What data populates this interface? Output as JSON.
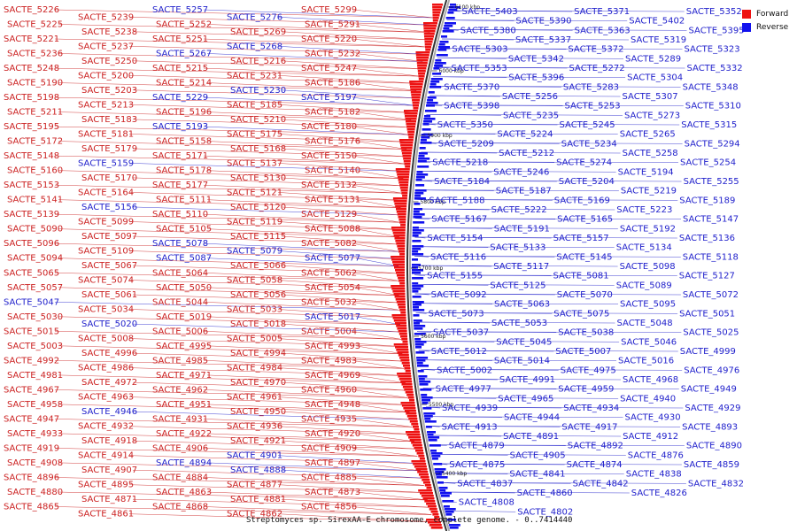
{
  "title": "Streptomyces sp. SirexAA-E chromosome, complete genome. - 0..7414440",
  "colors": {
    "forward": "#ee1111",
    "reverse": "#1111ee",
    "forward_text": "#cc2222",
    "reverse_text": "#2222cc"
  },
  "legend": [
    {
      "label": "Forward",
      "color": "#ee1111"
    },
    {
      "label": "Reverse",
      "color": "#1111ee"
    }
  ],
  "position_labels": [
    "6100 kbp",
    "6000 kbp",
    "5900 kbp",
    "5800 kbp",
    "5700 kbp",
    "5600 kbp",
    "5500 kbp",
    "5400 kbp"
  ],
  "left_labels": [
    [
      "SACTE_5226",
      "f"
    ],
    [
      "SACTE_5239",
      "f"
    ],
    [
      "SACTE_5257",
      "r"
    ],
    [
      "SACTE_5276",
      "r"
    ],
    [
      "SACTE_5299",
      "f"
    ],
    [
      "SACTE_5225",
      "f"
    ],
    [
      "SACTE_5238",
      "f"
    ],
    [
      "SACTE_5252",
      "f"
    ],
    [
      "SACTE_5269",
      "f"
    ],
    [
      "SACTE_5291",
      "f"
    ],
    [
      "SACTE_5221",
      "f"
    ],
    [
      "SACTE_5237",
      "f"
    ],
    [
      "SACTE_5251",
      "f"
    ],
    [
      "SACTE_5268",
      "r"
    ],
    [
      "SACTE_5220",
      "f"
    ],
    [
      "SACTE_5236",
      "f"
    ],
    [
      "SACTE_5250",
      "f"
    ],
    [
      "SACTE_5267",
      "r"
    ],
    [
      "SACTE_5216",
      "f"
    ],
    [
      "SACTE_5232",
      "f"
    ],
    [
      "SACTE_5248",
      "f"
    ],
    [
      "SACTE_5200",
      "f"
    ],
    [
      "SACTE_5215",
      "f"
    ],
    [
      "SACTE_5231",
      "f"
    ],
    [
      "SACTE_5247",
      "f"
    ],
    [
      "SACTE_5190",
      "f"
    ],
    [
      "SACTE_5203",
      "f"
    ],
    [
      "SACTE_5214",
      "f"
    ],
    [
      "SACTE_5230",
      "r"
    ],
    [
      "SACTE_5186",
      "f"
    ],
    [
      "SACTE_5198",
      "f"
    ],
    [
      "SACTE_5213",
      "f"
    ],
    [
      "SACTE_5229",
      "r"
    ],
    [
      "SACTE_5185",
      "f"
    ],
    [
      "SACTE_5197",
      "r"
    ],
    [
      "SACTE_5211",
      "f"
    ],
    [
      "SACTE_5183",
      "f"
    ],
    [
      "SACTE_5196",
      "f"
    ],
    [
      "SACTE_5210",
      "f"
    ],
    [
      "SACTE_5182",
      "f"
    ],
    [
      "SACTE_5195",
      "f"
    ],
    [
      "SACTE_5181",
      "f"
    ],
    [
      "SACTE_5193",
      "r"
    ],
    [
      "SACTE_5175",
      "f"
    ],
    [
      "SACTE_5180",
      "f"
    ],
    [
      "SACTE_5172",
      "f"
    ],
    [
      "SACTE_5179",
      "f"
    ],
    [
      "SACTE_5158",
      "f"
    ],
    [
      "SACTE_5168",
      "f"
    ],
    [
      "SACTE_5176",
      "f"
    ],
    [
      "SACTE_5148",
      "f"
    ],
    [
      "SACTE_5159",
      "r"
    ],
    [
      "SACTE_5171",
      "f"
    ],
    [
      "SACTE_5137",
      "f"
    ],
    [
      "SACTE_5150",
      "f"
    ],
    [
      "SACTE_5160",
      "f"
    ],
    [
      "SACTE_5170",
      "f"
    ],
    [
      "SACTE_5178",
      "f"
    ],
    [
      "SACTE_5130",
      "f"
    ],
    [
      "SACTE_5140",
      "f"
    ],
    [
      "SACTE_5153",
      "f"
    ],
    [
      "SACTE_5164",
      "f"
    ],
    [
      "SACTE_5177",
      "f"
    ],
    [
      "SACTE_5121",
      "f"
    ],
    [
      "SACTE_5132",
      "f"
    ],
    [
      "SACTE_5141",
      "f"
    ],
    [
      "SACTE_5156",
      "r"
    ],
    [
      "SACTE_5111",
      "f"
    ],
    [
      "SACTE_5120",
      "f"
    ],
    [
      "SACTE_5131",
      "f"
    ],
    [
      "SACTE_5139",
      "f"
    ],
    [
      "SACTE_5099",
      "f"
    ],
    [
      "SACTE_5110",
      "f"
    ],
    [
      "SACTE_5119",
      "f"
    ],
    [
      "SACTE_5129",
      "f"
    ],
    [
      "SACTE_5090",
      "f"
    ],
    [
      "SACTE_5097",
      "f"
    ],
    [
      "SACTE_5105",
      "f"
    ],
    [
      "SACTE_5115",
      "f"
    ],
    [
      "SACTE_5088",
      "f"
    ],
    [
      "SACTE_5096",
      "f"
    ],
    [
      "SACTE_5109",
      "f"
    ],
    [
      "SACTE_5078",
      "r"
    ],
    [
      "SACTE_5079",
      "r"
    ],
    [
      "SACTE_5082",
      "f"
    ],
    [
      "SACTE_5094",
      "f"
    ],
    [
      "SACTE_5067",
      "f"
    ],
    [
      "SACTE_5087",
      "r"
    ],
    [
      "SACTE_5066",
      "f"
    ],
    [
      "SACTE_5077",
      "r"
    ],
    [
      "SACTE_5065",
      "f"
    ],
    [
      "SACTE_5074",
      "f"
    ],
    [
      "SACTE_5064",
      "f"
    ],
    [
      "SACTE_5058",
      "f"
    ],
    [
      "SACTE_5062",
      "f"
    ],
    [
      "SACTE_5057",
      "f"
    ],
    [
      "SACTE_5061",
      "f"
    ],
    [
      "SACTE_5050",
      "f"
    ],
    [
      "SACTE_5056",
      "f"
    ],
    [
      "SACTE_5054",
      "f"
    ],
    [
      "SACTE_5047",
      "r"
    ],
    [
      "SACTE_5034",
      "f"
    ],
    [
      "SACTE_5044",
      "f"
    ],
    [
      "SACTE_5033",
      "f"
    ],
    [
      "SACTE_5032",
      "f"
    ],
    [
      "SACTE_5030",
      "f"
    ],
    [
      "SACTE_5020",
      "r"
    ],
    [
      "SACTE_5019",
      "f"
    ],
    [
      "SACTE_5018",
      "f"
    ],
    [
      "SACTE_5017",
      "r"
    ],
    [
      "SACTE_5015",
      "f"
    ],
    [
      "SACTE_5008",
      "f"
    ],
    [
      "SACTE_5006",
      "f"
    ],
    [
      "SACTE_5005",
      "f"
    ],
    [
      "SACTE_5004",
      "f"
    ],
    [
      "SACTE_5003",
      "f"
    ],
    [
      "SACTE_4996",
      "f"
    ],
    [
      "SACTE_4995",
      "f"
    ],
    [
      "SACTE_4994",
      "f"
    ],
    [
      "SACTE_4993",
      "f"
    ],
    [
      "SACTE_4992",
      "f"
    ],
    [
      "SACTE_4986",
      "f"
    ],
    [
      "SACTE_4985",
      "f"
    ],
    [
      "SACTE_4984",
      "f"
    ],
    [
      "SACTE_4983",
      "f"
    ],
    [
      "SACTE_4981",
      "f"
    ],
    [
      "SACTE_4972",
      "f"
    ],
    [
      "SACTE_4971",
      "f"
    ],
    [
      "SACTE_4970",
      "f"
    ],
    [
      "SACTE_4969",
      "f"
    ],
    [
      "SACTE_4967",
      "f"
    ],
    [
      "SACTE_4963",
      "f"
    ],
    [
      "SACTE_4962",
      "f"
    ],
    [
      "SACTE_4961",
      "f"
    ],
    [
      "SACTE_4960",
      "f"
    ],
    [
      "SACTE_4958",
      "f"
    ],
    [
      "SACTE_4946",
      "r"
    ],
    [
      "SACTE_4951",
      "f"
    ],
    [
      "SACTE_4950",
      "f"
    ],
    [
      "SACTE_4948",
      "f"
    ],
    [
      "SACTE_4947",
      "f"
    ],
    [
      "SACTE_4932",
      "f"
    ],
    [
      "SACTE_4931",
      "f"
    ],
    [
      "SACTE_4936",
      "f"
    ],
    [
      "SACTE_4935",
      "f"
    ],
    [
      "SACTE_4933",
      "f"
    ],
    [
      "SACTE_4918",
      "f"
    ],
    [
      "SACTE_4922",
      "f"
    ],
    [
      "SACTE_4921",
      "f"
    ],
    [
      "SACTE_4920",
      "f"
    ],
    [
      "SACTE_4919",
      "f"
    ],
    [
      "SACTE_4914",
      "f"
    ],
    [
      "SACTE_4906",
      "f"
    ],
    [
      "SACTE_4901",
      "r"
    ],
    [
      "SACTE_4909",
      "f"
    ],
    [
      "SACTE_4908",
      "f"
    ],
    [
      "SACTE_4907",
      "f"
    ],
    [
      "SACTE_4894",
      "r"
    ],
    [
      "SACTE_4888",
      "r"
    ],
    [
      "SACTE_4897",
      "f"
    ],
    [
      "SACTE_4896",
      "f"
    ],
    [
      "SACTE_4895",
      "f"
    ],
    [
      "SACTE_4884",
      "f"
    ],
    [
      "SACTE_4877",
      "f"
    ],
    [
      "SACTE_4885",
      "f"
    ],
    [
      "SACTE_4880",
      "f"
    ],
    [
      "SACTE_4871",
      "f"
    ],
    [
      "SACTE_4863",
      "f"
    ],
    [
      "SACTE_4881",
      "f"
    ],
    [
      "SACTE_4873",
      "f"
    ],
    [
      "SACTE_4865",
      "f"
    ],
    [
      "SACTE_4861",
      "f"
    ],
    [
      "SACTE_4868",
      "f"
    ],
    [
      "SACTE_4862",
      "f"
    ],
    [
      "SACTE_4856",
      "f"
    ]
  ],
  "right_labels": [
    [
      "SACTE_5403",
      "r"
    ],
    [
      "SACTE_5390",
      "r"
    ],
    [
      "SACTE_5371",
      "r"
    ],
    [
      "SACTE_5402",
      "r"
    ],
    [
      "SACTE_5352",
      "r"
    ],
    [
      "SACTE_5380",
      "r"
    ],
    [
      "SACTE_5337",
      "r"
    ],
    [
      "SACTE_5363",
      "r"
    ],
    [
      "SACTE_5319",
      "r"
    ],
    [
      "SACTE_5395",
      "r"
    ],
    [
      "SACTE_5303",
      "r"
    ],
    [
      "SACTE_5342",
      "r"
    ],
    [
      "SACTE_5372",
      "r"
    ],
    [
      "SACTE_5289",
      "r"
    ],
    [
      "SACTE_5323",
      "r"
    ],
    [
      "SACTE_5353",
      "r"
    ],
    [
      "SACTE_5396",
      "r"
    ],
    [
      "SACTE_5272",
      "r"
    ],
    [
      "SACTE_5304",
      "r"
    ],
    [
      "SACTE_5332",
      "r"
    ],
    [
      "SACTE_5370",
      "r"
    ],
    [
      "SACTE_5256",
      "r"
    ],
    [
      "SACTE_5283",
      "r"
    ],
    [
      "SACTE_5307",
      "r"
    ],
    [
      "SACTE_5348",
      "r"
    ],
    [
      "SACTE_5398",
      "r"
    ],
    [
      "SACTE_5235",
      "r"
    ],
    [
      "SACTE_5253",
      "r"
    ],
    [
      "SACTE_5273",
      "r"
    ],
    [
      "SACTE_5310",
      "r"
    ],
    [
      "SACTE_5350",
      "r"
    ],
    [
      "SACTE_5224",
      "r"
    ],
    [
      "SACTE_5245",
      "r"
    ],
    [
      "SACTE_5265",
      "r"
    ],
    [
      "SACTE_5315",
      "r"
    ],
    [
      "SACTE_5209",
      "r"
    ],
    [
      "SACTE_5212",
      "r"
    ],
    [
      "SACTE_5234",
      "r"
    ],
    [
      "SACTE_5258",
      "r"
    ],
    [
      "SACTE_5294",
      "r"
    ],
    [
      "SACTE_5218",
      "r"
    ],
    [
      "SACTE_5246",
      "r"
    ],
    [
      "SACTE_5274",
      "r"
    ],
    [
      "SACTE_5194",
      "r"
    ],
    [
      "SACTE_5254",
      "r"
    ],
    [
      "SACTE_5184",
      "r"
    ],
    [
      "SACTE_5187",
      "r"
    ],
    [
      "SACTE_5204",
      "r"
    ],
    [
      "SACTE_5219",
      "r"
    ],
    [
      "SACTE_5255",
      "r"
    ],
    [
      "SACTE_5188",
      "r"
    ],
    [
      "SACTE_5222",
      "r"
    ],
    [
      "SACTE_5169",
      "r"
    ],
    [
      "SACTE_5223",
      "r"
    ],
    [
      "SACTE_5189",
      "r"
    ],
    [
      "SACTE_5167",
      "r"
    ],
    [
      "SACTE_5191",
      "r"
    ],
    [
      "SACTE_5165",
      "r"
    ],
    [
      "SACTE_5192",
      "r"
    ],
    [
      "SACTE_5147",
      "r"
    ],
    [
      "SACTE_5154",
      "r"
    ],
    [
      "SACTE_5133",
      "r"
    ],
    [
      "SACTE_5157",
      "r"
    ],
    [
      "SACTE_5134",
      "r"
    ],
    [
      "SACTE_5136",
      "r"
    ],
    [
      "SACTE_5116",
      "r"
    ],
    [
      "SACTE_5117",
      "r"
    ],
    [
      "SACTE_5145",
      "r"
    ],
    [
      "SACTE_5098",
      "r"
    ],
    [
      "SACTE_5118",
      "r"
    ],
    [
      "SACTE_5155",
      "r"
    ],
    [
      "SACTE_5125",
      "r"
    ],
    [
      "SACTE_5081",
      "r"
    ],
    [
      "SACTE_5089",
      "r"
    ],
    [
      "SACTE_5127",
      "r"
    ],
    [
      "SACTE_5092",
      "r"
    ],
    [
      "SACTE_5063",
      "r"
    ],
    [
      "SACTE_5070",
      "r"
    ],
    [
      "SACTE_5095",
      "r"
    ],
    [
      "SACTE_5072",
      "r"
    ],
    [
      "SACTE_5073",
      "r"
    ],
    [
      "SACTE_5053",
      "r"
    ],
    [
      "SACTE_5075",
      "r"
    ],
    [
      "SACTE_5048",
      "r"
    ],
    [
      "SACTE_5051",
      "r"
    ],
    [
      "SACTE_5037",
      "r"
    ],
    [
      "SACTE_5045",
      "r"
    ],
    [
      "SACTE_5038",
      "r"
    ],
    [
      "SACTE_5046",
      "r"
    ],
    [
      "SACTE_5025",
      "r"
    ],
    [
      "SACTE_5012",
      "r"
    ],
    [
      "SACTE_5014",
      "r"
    ],
    [
      "SACTE_5007",
      "r"
    ],
    [
      "SACTE_5016",
      "r"
    ],
    [
      "SACTE_4999",
      "r"
    ],
    [
      "SACTE_5002",
      "r"
    ],
    [
      "SACTE_4991",
      "r"
    ],
    [
      "SACTE_4975",
      "r"
    ],
    [
      "SACTE_4968",
      "r"
    ],
    [
      "SACTE_4976",
      "r"
    ],
    [
      "SACTE_4977",
      "r"
    ],
    [
      "SACTE_4965",
      "r"
    ],
    [
      "SACTE_4959",
      "r"
    ],
    [
      "SACTE_4940",
      "r"
    ],
    [
      "SACTE_4949",
      "r"
    ],
    [
      "SACTE_4939",
      "r"
    ],
    [
      "SACTE_4944",
      "r"
    ],
    [
      "SACTE_4934",
      "r"
    ],
    [
      "SACTE_4930",
      "r"
    ],
    [
      "SACTE_4929",
      "r"
    ],
    [
      "SACTE_4913",
      "r"
    ],
    [
      "SACTE_4891",
      "r"
    ],
    [
      "SACTE_4917",
      "r"
    ],
    [
      "SACTE_4912",
      "r"
    ],
    [
      "SACTE_4893",
      "r"
    ],
    [
      "SACTE_4879",
      "r"
    ],
    [
      "SACTE_4905",
      "r"
    ],
    [
      "SACTE_4892",
      "r"
    ],
    [
      "SACTE_4876",
      "r"
    ],
    [
      "SACTE_4890",
      "r"
    ],
    [
      "SACTE_4875",
      "r"
    ],
    [
      "SACTE_4841",
      "r"
    ],
    [
      "SACTE_4874",
      "r"
    ],
    [
      "SACTE_4838",
      "r"
    ],
    [
      "SACTE_4859",
      "r"
    ],
    [
      "SACTE_4837",
      "r"
    ],
    [
      "SACTE_4860",
      "r"
    ],
    [
      "SACTE_4842",
      "r"
    ],
    [
      "SACTE_4826",
      "r"
    ],
    [
      "SACTE_4832",
      "r"
    ],
    [
      "SACTE_4808",
      "r"
    ],
    [
      "SACTE_4802",
      "r"
    ]
  ]
}
